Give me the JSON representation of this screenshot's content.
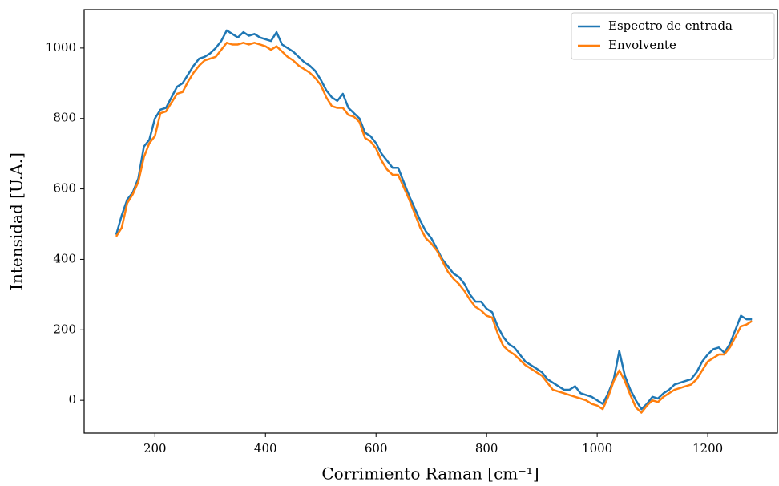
{
  "chart_data": {
    "type": "line",
    "xlabel": "Corrimiento Raman [cm⁻¹]",
    "ylabel": "Intensidad [U.A.]",
    "x": [
      130,
      140,
      150,
      160,
      170,
      180,
      190,
      200,
      210,
      220,
      230,
      240,
      250,
      260,
      270,
      280,
      290,
      300,
      310,
      320,
      330,
      340,
      350,
      360,
      370,
      380,
      390,
      400,
      410,
      420,
      430,
      440,
      450,
      460,
      470,
      480,
      490,
      500,
      510,
      520,
      530,
      540,
      550,
      560,
      570,
      580,
      590,
      600,
      610,
      620,
      630,
      640,
      650,
      660,
      670,
      680,
      690,
      700,
      710,
      720,
      730,
      740,
      750,
      760,
      770,
      780,
      790,
      800,
      810,
      820,
      830,
      840,
      850,
      860,
      870,
      880,
      890,
      900,
      910,
      920,
      930,
      940,
      950,
      960,
      970,
      980,
      990,
      1000,
      1010,
      1020,
      1030,
      1040,
      1050,
      1060,
      1070,
      1080,
      1090,
      1100,
      1110,
      1120,
      1130,
      1140,
      1150,
      1160,
      1170,
      1180,
      1190,
      1200,
      1210,
      1220,
      1230,
      1240,
      1250,
      1260,
      1270,
      1280
    ],
    "series": [
      {
        "name": "Espectro de entrada",
        "color": "#1f77b4",
        "values": [
          470,
          525,
          570,
          590,
          630,
          720,
          740,
          800,
          825,
          830,
          860,
          890,
          900,
          925,
          950,
          970,
          975,
          985,
          1000,
          1020,
          1050,
          1040,
          1030,
          1045,
          1035,
          1040,
          1030,
          1025,
          1020,
          1045,
          1010,
          1000,
          990,
          975,
          960,
          950,
          935,
          910,
          880,
          860,
          850,
          870,
          830,
          815,
          800,
          760,
          750,
          730,
          700,
          680,
          660,
          660,
          620,
          580,
          545,
          510,
          480,
          460,
          430,
          400,
          380,
          360,
          350,
          330,
          300,
          280,
          280,
          260,
          250,
          210,
          180,
          160,
          150,
          130,
          110,
          100,
          90,
          80,
          60,
          50,
          40,
          30,
          30,
          40,
          20,
          15,
          10,
          0,
          -10,
          20,
          60,
          140,
          70,
          30,
          0,
          -25,
          -10,
          10,
          5,
          20,
          30,
          45,
          50,
          55,
          60,
          80,
          110,
          130,
          145,
          150,
          135,
          160,
          200,
          240,
          230,
          230
        ]
      },
      {
        "name": "Envolvente",
        "color": "#ff7f0e",
        "values": [
          465,
          490,
          560,
          585,
          620,
          690,
          730,
          750,
          815,
          820,
          845,
          870,
          875,
          905,
          930,
          950,
          965,
          970,
          975,
          995,
          1015,
          1010,
          1010,
          1015,
          1010,
          1015,
          1010,
          1005,
          995,
          1005,
          990,
          975,
          965,
          950,
          940,
          930,
          915,
          895,
          860,
          835,
          830,
          830,
          810,
          805,
          790,
          745,
          735,
          715,
          680,
          655,
          640,
          640,
          605,
          570,
          530,
          490,
          460,
          445,
          425,
          395,
          365,
          345,
          330,
          310,
          285,
          265,
          255,
          240,
          235,
          190,
          155,
          140,
          130,
          115,
          100,
          90,
          80,
          70,
          50,
          30,
          25,
          20,
          15,
          10,
          5,
          0,
          -10,
          -15,
          -25,
          10,
          55,
          85,
          55,
          15,
          -20,
          -35,
          -15,
          0,
          -5,
          10,
          20,
          30,
          35,
          40,
          45,
          60,
          85,
          110,
          120,
          130,
          130,
          150,
          180,
          210,
          215,
          225
        ]
      }
    ],
    "xlim": [
      72,
      1326
    ],
    "ylim": [
      -93,
      1109
    ],
    "xticks": [
      200,
      400,
      600,
      800,
      1000,
      1200
    ],
    "yticks": [
      0,
      200,
      400,
      600,
      800,
      1000
    ],
    "legend": "upper right",
    "grid": false
  }
}
